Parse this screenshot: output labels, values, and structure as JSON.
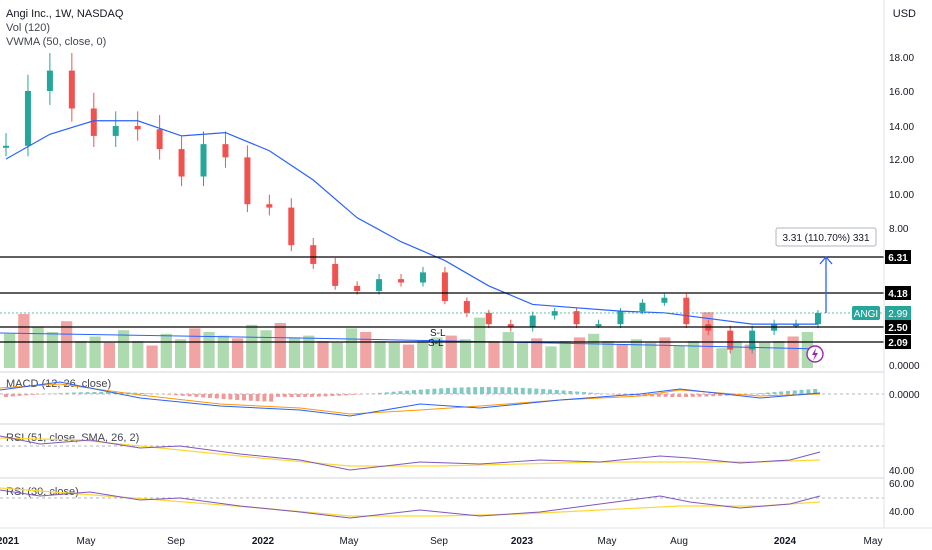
{
  "header": {
    "title": "Angi Inc., 1W, NASDAQ",
    "vol_label": "Vol (120)",
    "vwma_label": "VWMA (50, close, 0)",
    "currency": "USD"
  },
  "panes": {
    "macd_label": "MACD (12, 26, close)",
    "rsi_label": "RSI (51, close, SMA, 26, 2)",
    "rsi2_label": "RSI (30, close)"
  },
  "measure_label": "3.31 (110.70%) 331",
  "annotations": [
    "S-L",
    "S-L"
  ],
  "colors": {
    "up": "#26a69a",
    "down": "#ef5350",
    "vwma": "#2962ff",
    "level": "#000000",
    "measure": "#2962ff"
  },
  "chart_data": {
    "type": "candlestick",
    "symbol": "ANGI",
    "interval": "1W",
    "price_axis_ticks": [
      "18.00",
      "16.00",
      "14.00",
      "12.00",
      "10.00",
      "8.00",
      "0.0000"
    ],
    "time_axis_ticks": [
      "2021",
      "May",
      "Sep",
      "2022",
      "May",
      "Sep",
      "2023",
      "May",
      "Aug",
      "2024",
      "May"
    ],
    "horizontal_levels": [
      6.31,
      4.18,
      2.5,
      2.09
    ],
    "level_labels": [
      "6.31",
      "4.18",
      "2.50",
      "2.09"
    ],
    "last_price": 2.99,
    "last_price_label": "2.99",
    "measure": {
      "from": 2.99,
      "to": 6.31,
      "change": 3.31,
      "percent": 110.7
    },
    "price_series": {
      "name": "ANGI",
      "close_points": [
        [
          "2021-01",
          12.8
        ],
        [
          "2021-02",
          16.0
        ],
        [
          "2021-03",
          17.2
        ],
        [
          "2021-04",
          15.0
        ],
        [
          "2021-05",
          13.4
        ],
        [
          "2021-06",
          14.0
        ],
        [
          "2021-07",
          13.8
        ],
        [
          "2021-08",
          12.6
        ],
        [
          "2021-09",
          11.0
        ],
        [
          "2021-10",
          12.9
        ],
        [
          "2021-11",
          12.1
        ],
        [
          "2021-12",
          9.4
        ],
        [
          "2022-01",
          9.2
        ],
        [
          "2022-02",
          7.0
        ],
        [
          "2022-03",
          5.9
        ],
        [
          "2022-04",
          4.6
        ],
        [
          "2022-05",
          4.3
        ],
        [
          "2022-06",
          5.0
        ],
        [
          "2022-07",
          4.8
        ],
        [
          "2022-08",
          5.4
        ],
        [
          "2022-09",
          3.7
        ],
        [
          "2022-10",
          3.0
        ],
        [
          "2022-11",
          2.6
        ],
        [
          "2022-12",
          2.5
        ],
        [
          "2023-01",
          2.9
        ],
        [
          "2023-02",
          3.1
        ],
        [
          "2023-03",
          2.6
        ],
        [
          "2023-04",
          2.6
        ],
        [
          "2023-05",
          3.1
        ],
        [
          "2023-06",
          3.6
        ],
        [
          "2023-07",
          3.9
        ],
        [
          "2023-08",
          2.6
        ],
        [
          "2023-09",
          2.4
        ],
        [
          "2023-10",
          1.9
        ],
        [
          "2023-11",
          2.4
        ],
        [
          "2023-12",
          2.6
        ],
        [
          "2024-01",
          2.6
        ],
        [
          "2024-02",
          2.99
        ]
      ]
    },
    "vwma_series": {
      "points": [
        [
          "2021-01",
          12.0
        ],
        [
          "2021-03",
          13.5
        ],
        [
          "2021-05",
          14.3
        ],
        [
          "2021-07",
          14.3
        ],
        [
          "2021-09",
          13.4
        ],
        [
          "2021-11",
          13.6
        ],
        [
          "2022-01",
          12.5
        ],
        [
          "2022-03",
          10.8
        ],
        [
          "2022-05",
          8.6
        ],
        [
          "2022-07",
          7.2
        ],
        [
          "2022-09",
          6.1
        ],
        [
          "2022-11",
          4.6
        ],
        [
          "2023-01",
          3.5
        ],
        [
          "2023-03",
          3.3
        ],
        [
          "2023-05",
          3.1
        ],
        [
          "2023-07",
          3.0
        ],
        [
          "2023-09",
          2.8
        ],
        [
          "2023-11",
          2.6
        ],
        [
          "2024-01",
          2.6
        ],
        [
          "2024-02",
          2.6
        ]
      ]
    },
    "volume_series": {
      "values": [
        38,
        60,
        45,
        40,
        52,
        30,
        35,
        28,
        42,
        30,
        25,
        38,
        32,
        44,
        40,
        36,
        33,
        48,
        42,
        50,
        34,
        36,
        30,
        28,
        44,
        40,
        30,
        28,
        26,
        30,
        34,
        36,
        32,
        56,
        30,
        40,
        28,
        33,
        24,
        30,
        34,
        38,
        30,
        26,
        32,
        28,
        34,
        25,
        30,
        62,
        22,
        30,
        26,
        28,
        30,
        35,
        40
      ]
    },
    "rsi_y_ticks": [
      "40.00"
    ],
    "rsi2_y_ticks": [
      "60.00",
      "40.00"
    ],
    "macd_y_ticks": [
      "0.0000"
    ]
  }
}
